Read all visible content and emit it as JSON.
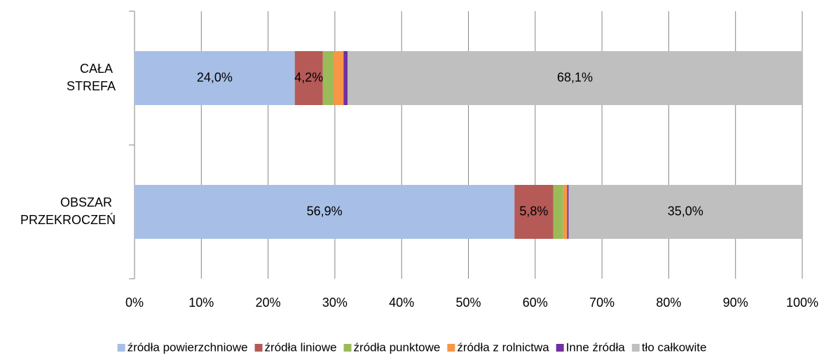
{
  "chart_data": {
    "type": "stacked-bar-horizontal",
    "categories": [
      "CAŁA STREFA",
      "OBSZAR PRZEKROCZEŃ"
    ],
    "series": [
      {
        "name": "źródła powierzchniowe",
        "color": "#a7bfe6",
        "values": [
          24.0,
          56.9
        ],
        "value_labels": [
          "24,0%",
          "56,9%"
        ]
      },
      {
        "name": "źródła liniowe",
        "color": "#b55a57",
        "values": [
          4.2,
          5.8
        ],
        "value_labels": [
          "4,2%",
          "5,8%"
        ]
      },
      {
        "name": "źródła punktowe",
        "color": "#9bbb59",
        "values": [
          1.6,
          1.5
        ]
      },
      {
        "name": "źródła z rolnictwa",
        "color": "#f79646",
        "values": [
          1.5,
          0.6
        ]
      },
      {
        "name": "Inne źródła",
        "color": "#7030a0",
        "values": [
          0.6,
          0.2
        ]
      },
      {
        "name": "tło całkowite",
        "color": "#bfbfbf",
        "values": [
          68.1,
          35.0
        ],
        "value_labels": [
          "68,1%",
          "35,0%"
        ]
      }
    ],
    "xlim": [
      0,
      100
    ],
    "xticks": [
      {
        "value": 0,
        "label": "0%"
      },
      {
        "value": 10,
        "label": "10%"
      },
      {
        "value": 20,
        "label": "20%"
      },
      {
        "value": 30,
        "label": "30%"
      },
      {
        "value": 40,
        "label": "40%"
      },
      {
        "value": 50,
        "label": "50%"
      },
      {
        "value": 60,
        "label": "60%"
      },
      {
        "value": 70,
        "label": "70%"
      },
      {
        "value": 80,
        "label": "80%"
      },
      {
        "value": 90,
        "label": "90%"
      },
      {
        "value": 100,
        "label": "100%"
      }
    ],
    "grid": true,
    "legend": "bottom"
  }
}
